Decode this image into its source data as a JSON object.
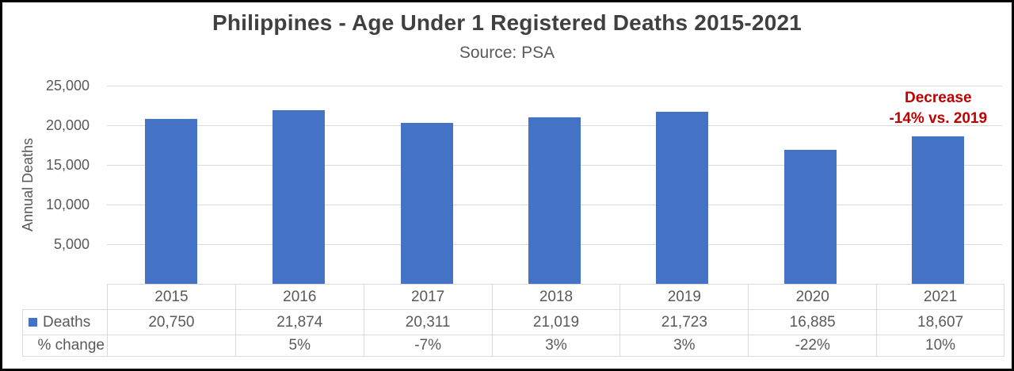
{
  "title": "Philippines - Age Under 1 Registered Deaths 2015-2021",
  "subtitle": "Source: PSA",
  "annotation": {
    "line1": "Decrease",
    "line2": "-14% vs. 2019"
  },
  "y_axis": {
    "label": "Annual Deaths",
    "ticks": [
      {
        "value": 25000,
        "label": "25,000"
      },
      {
        "value": 20000,
        "label": "20,000"
      },
      {
        "value": 15000,
        "label": "15,000"
      },
      {
        "value": 10000,
        "label": "10,000"
      },
      {
        "value": 5000,
        "label": "5,000"
      },
      {
        "value": 0,
        "label": "-"
      }
    ]
  },
  "colors": {
    "bar": "#4472c4",
    "title": "#404040",
    "text": "#595959",
    "gridline": "#d9d9d9",
    "table_border": "#d9d9d9",
    "annotation_red": "#c00000",
    "outer_border": "#000000"
  },
  "chart_data": {
    "type": "bar",
    "title": "Philippines - Age Under 1 Registered Deaths 2015-2021",
    "subtitle": "Source: PSA",
    "xlabel": "",
    "ylabel": "Annual Deaths",
    "categories": [
      "2015",
      "2016",
      "2017",
      "2018",
      "2019",
      "2020",
      "2021"
    ],
    "series": [
      {
        "name": "Deaths",
        "values": [
          20750,
          21874,
          20311,
          21019,
          21723,
          16885,
          18607
        ]
      }
    ],
    "pct_change": [
      "",
      "5%",
      "-7%",
      "3%",
      "3%",
      "-22%",
      "10%"
    ],
    "ylim": [
      0,
      25000
    ],
    "yticks": [
      0,
      5000,
      10000,
      15000,
      20000,
      25000
    ],
    "grid": true,
    "legend_position": "data-table-left",
    "annotation": "Decrease -14% vs. 2019 (above 2021 bar)"
  },
  "table": {
    "row_labels": [
      "Deaths",
      "% change"
    ],
    "legend_marker_color": "#4472c4",
    "years": [
      "2015",
      "2016",
      "2017",
      "2018",
      "2019",
      "2020",
      "2021"
    ],
    "deaths_display": [
      "20,750",
      "21,874",
      "20,311",
      "21,019",
      "21,723",
      "16,885",
      "18,607"
    ],
    "pct_change_display": [
      "",
      "5%",
      "-7%",
      "3%",
      "3%",
      "-22%",
      "10%"
    ]
  }
}
